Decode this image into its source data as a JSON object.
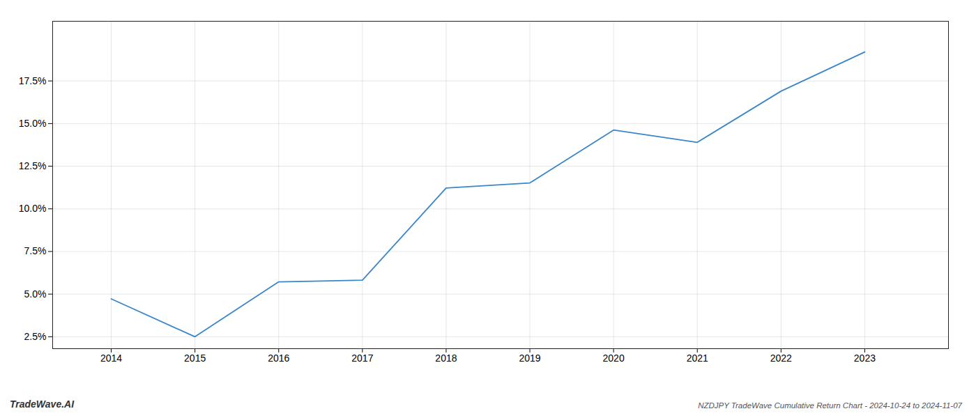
{
  "chart_data": {
    "type": "line",
    "title": "NZDJPY TradeWave Cumulative Return Chart - 2024-10-24 to 2024-11-07",
    "annotations": [
      "TradeWave.AI"
    ],
    "x": [
      2014,
      2015,
      2016,
      2017,
      2018,
      2019,
      2020,
      2021,
      2022,
      2023
    ],
    "values": [
      4.72,
      2.5,
      5.72,
      5.82,
      11.22,
      11.52,
      14.62,
      13.9,
      16.9,
      19.2
    ],
    "color": "#3a86c8",
    "xlim": [
      2013.3,
      2024.0
    ],
    "ylim": [
      1.8,
      21.0
    ],
    "xticks": [
      2014,
      2015,
      2016,
      2017,
      2018,
      2019,
      2020,
      2021,
      2022,
      2023
    ],
    "yticks": [
      {
        "value": 2.5,
        "label": "2.5%"
      },
      {
        "value": 5.0,
        "label": "5.0%"
      },
      {
        "value": 7.5,
        "label": "7.5%"
      },
      {
        "value": 10.0,
        "label": "10.0%"
      },
      {
        "value": 12.5,
        "label": "12.5%"
      },
      {
        "value": 15.0,
        "label": "15.0%"
      },
      {
        "value": 17.5,
        "label": "17.5%"
      }
    ],
    "grid": true
  }
}
